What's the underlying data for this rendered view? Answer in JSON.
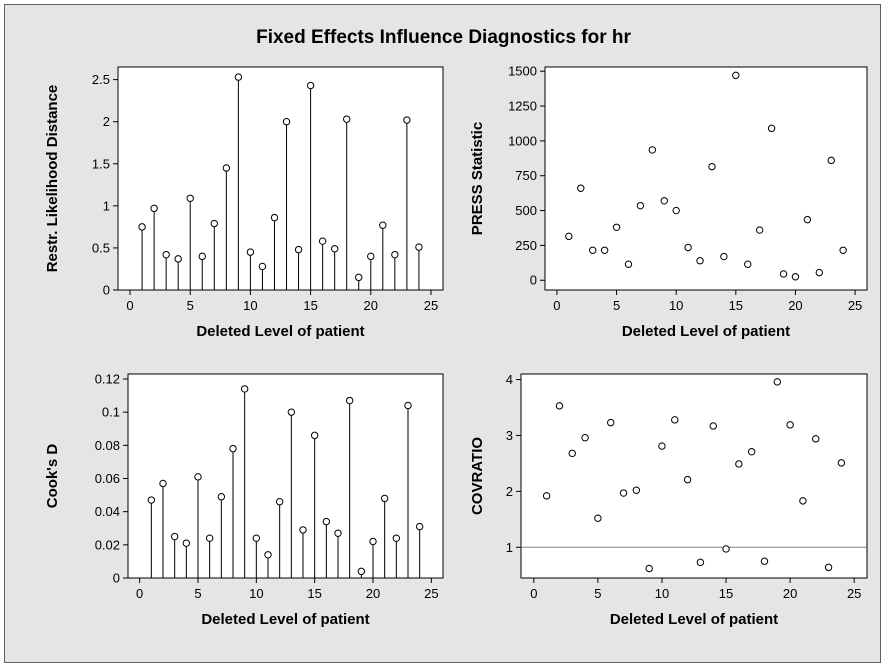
{
  "figure_title": "Fixed Effects Influence Diagnostics for hr",
  "chart_data": [
    {
      "type": "scatter",
      "style": "needle",
      "xlabel": "Deleted Level of patient",
      "ylabel": "Restr. Likelihood Distance",
      "xlim": [
        -1,
        26
      ],
      "ylim": [
        0,
        2.65
      ],
      "xticks": [
        0,
        5,
        10,
        15,
        20,
        25
      ],
      "yticks": [
        0,
        0.5,
        1,
        1.5,
        2,
        2.5
      ],
      "ytick_labels": [
        "0",
        "0.5",
        "1",
        "1.5",
        "2",
        "2.5"
      ],
      "x": [
        1,
        2,
        3,
        4,
        5,
        6,
        7,
        8,
        9,
        10,
        11,
        12,
        13,
        14,
        15,
        16,
        17,
        18,
        19,
        20,
        21,
        22,
        23,
        24
      ],
      "y": [
        0.75,
        0.97,
        0.42,
        0.37,
        1.09,
        0.4,
        0.79,
        1.45,
        2.53,
        0.45,
        0.28,
        0.86,
        2.0,
        0.48,
        2.43,
        0.58,
        0.49,
        2.03,
        0.15,
        0.4,
        0.77,
        0.42,
        2.02,
        0.51
      ]
    },
    {
      "type": "scatter",
      "style": "points",
      "xlabel": "Deleted Level of patient",
      "ylabel": "PRESS Statistic",
      "xlim": [
        -1,
        26
      ],
      "ylim": [
        -70,
        1530
      ],
      "xticks": [
        0,
        5,
        10,
        15,
        20,
        25
      ],
      "yticks": [
        0,
        250,
        500,
        750,
        1000,
        1250,
        1500
      ],
      "ytick_labels": [
        "0",
        "250",
        "500",
        "750",
        "1000",
        "1250",
        "1500"
      ],
      "x": [
        1,
        2,
        3,
        4,
        5,
        6,
        7,
        8,
        9,
        10,
        11,
        12,
        13,
        14,
        15,
        16,
        17,
        18,
        19,
        20,
        21,
        22,
        23,
        24
      ],
      "y": [
        315,
        660,
        215,
        215,
        380,
        115,
        535,
        935,
        570,
        500,
        235,
        140,
        815,
        170,
        1470,
        115,
        360,
        1090,
        45,
        25,
        435,
        55,
        860,
        215
      ]
    },
    {
      "type": "scatter",
      "style": "needle",
      "xlabel": "Deleted Level of patient",
      "ylabel": "Cook's D",
      "xlim": [
        -1,
        26
      ],
      "ylim": [
        0,
        0.123
      ],
      "xticks": [
        0,
        5,
        10,
        15,
        20,
        25
      ],
      "yticks": [
        0,
        0.02,
        0.04,
        0.06,
        0.08,
        0.1,
        0.12
      ],
      "ytick_labels": [
        "0",
        "0.02",
        "0.04",
        "0.06",
        "0.08",
        "0.1",
        "0.12"
      ],
      "x": [
        1,
        2,
        3,
        4,
        5,
        6,
        7,
        8,
        9,
        10,
        11,
        12,
        13,
        14,
        15,
        16,
        17,
        18,
        19,
        20,
        21,
        22,
        23,
        24
      ],
      "y": [
        0.047,
        0.057,
        0.025,
        0.021,
        0.061,
        0.024,
        0.049,
        0.078,
        0.114,
        0.024,
        0.014,
        0.046,
        0.1,
        0.029,
        0.086,
        0.034,
        0.027,
        0.107,
        0.004,
        0.022,
        0.048,
        0.024,
        0.104,
        0.031
      ]
    },
    {
      "type": "scatter",
      "style": "points",
      "xlabel": "Deleted Level of patient",
      "ylabel": "COVRATIO",
      "xlim": [
        -1,
        26
      ],
      "ylim": [
        0.45,
        4.1
      ],
      "xticks": [
        0,
        5,
        10,
        15,
        20,
        25
      ],
      "yticks": [
        1,
        2,
        3,
        4
      ],
      "ytick_labels": [
        "1",
        "2",
        "3",
        "4"
      ],
      "reference_line_y": 1,
      "x": [
        1,
        2,
        3,
        4,
        5,
        6,
        7,
        8,
        9,
        10,
        11,
        12,
        13,
        14,
        15,
        16,
        17,
        18,
        19,
        20,
        21,
        22,
        23,
        24
      ],
      "y": [
        1.92,
        3.53,
        2.68,
        2.96,
        1.52,
        3.23,
        1.97,
        2.02,
        0.62,
        2.81,
        3.28,
        2.21,
        0.73,
        3.17,
        0.97,
        2.49,
        2.71,
        0.75,
        3.96,
        3.19,
        1.83,
        2.94,
        0.64,
        2.51
      ]
    }
  ]
}
